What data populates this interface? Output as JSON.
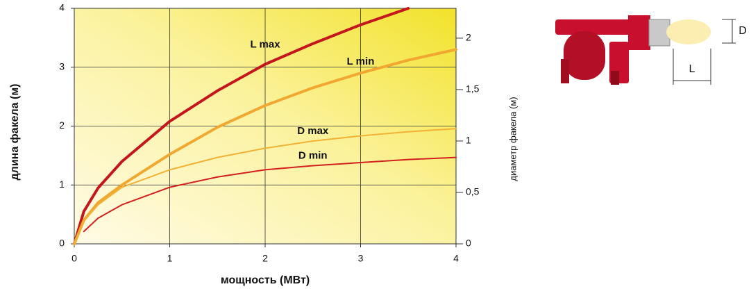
{
  "chart_data": {
    "type": "line",
    "y_label": "длина факела (м)",
    "y2_label": "диаметр факела (м)",
    "x_label": "мощность (МВт)",
    "x": [
      0,
      0.1,
      0.25,
      0.5,
      1,
      1.5,
      2,
      2.5,
      3,
      3.5,
      4
    ],
    "series": [
      {
        "name": "L max",
        "color": "#c4161c",
        "width": 4,
        "values": [
          0,
          0.55,
          0.95,
          1.4,
          2.08,
          2.6,
          3.05,
          3.4,
          3.72,
          4.0,
          null
        ]
      },
      {
        "name": "L min",
        "color": "#f0a830",
        "width": 4,
        "values": [
          0,
          0.4,
          0.7,
          1.0,
          1.52,
          1.98,
          2.35,
          2.65,
          2.9,
          3.12,
          3.3
        ]
      },
      {
        "name": "D max",
        "color": "#f2b134",
        "width": 2,
        "axis": "y2",
        "values": [
          0,
          0.22,
          0.38,
          0.55,
          0.72,
          0.84,
          0.93,
          1.0,
          1.05,
          1.09,
          1.12
        ]
      },
      {
        "name": "D min",
        "color": "#d41f1f",
        "width": 2,
        "axis": "y2",
        "values": [
          null,
          0.12,
          0.25,
          0.38,
          0.55,
          0.65,
          0.72,
          0.76,
          0.79,
          0.82,
          0.84
        ]
      }
    ],
    "xlim": [
      0,
      4
    ],
    "xticks": [
      0,
      1,
      2,
      3,
      4
    ],
    "ylim": [
      0,
      4
    ],
    "yticks": [
      0,
      1,
      2,
      3,
      4
    ],
    "y2lim": [
      0,
      2.29
    ],
    "y2ticks": [
      0,
      {
        "value": 0.5,
        "label": "0,5"
      },
      1,
      {
        "value": 1.5,
        "label": "1,5"
      },
      2
    ],
    "grid": true
  },
  "illustration": {
    "diameter_label": "D",
    "length_label": "L"
  }
}
